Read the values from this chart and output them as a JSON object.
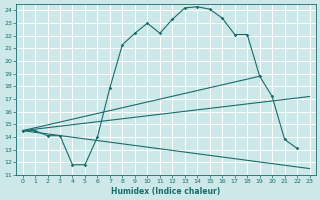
{
  "xlabel": "Humidex (Indice chaleur)",
  "background_color": "#cce8e8",
  "grid_color": "#ffffff",
  "line_color": "#1a6b6b",
  "xlim": [
    -0.5,
    23.5
  ],
  "ylim": [
    11,
    24.5
  ],
  "x_ticks": [
    0,
    1,
    2,
    3,
    4,
    5,
    6,
    7,
    8,
    9,
    10,
    11,
    12,
    13,
    14,
    15,
    16,
    17,
    18,
    19,
    20,
    21,
    22,
    23
  ],
  "y_ticks": [
    11,
    12,
    13,
    14,
    15,
    16,
    17,
    18,
    19,
    20,
    21,
    22,
    23,
    24
  ],
  "lines": [
    {
      "x": [
        0,
        1,
        2,
        3,
        4,
        5,
        6,
        7,
        8,
        9,
        10,
        11,
        12,
        13,
        14,
        15,
        16,
        17,
        18,
        19,
        20,
        21,
        22
      ],
      "y": [
        14.5,
        14.5,
        14.1,
        14.1,
        11.8,
        11.8,
        14.0,
        17.9,
        21.3,
        22.2,
        23.0,
        22.2,
        23.3,
        24.2,
        24.3,
        24.1,
        23.4,
        22.1,
        22.1,
        18.8,
        17.2,
        13.8,
        13.1
      ],
      "markers": true
    },
    {
      "x": [
        0,
        23
      ],
      "y": [
        14.5,
        11.5
      ],
      "markers": false
    },
    {
      "x": [
        0,
        23
      ],
      "y": [
        14.5,
        17.2
      ],
      "markers": false
    },
    {
      "x": [
        0,
        19
      ],
      "y": [
        14.5,
        18.8
      ],
      "markers": false
    }
  ]
}
